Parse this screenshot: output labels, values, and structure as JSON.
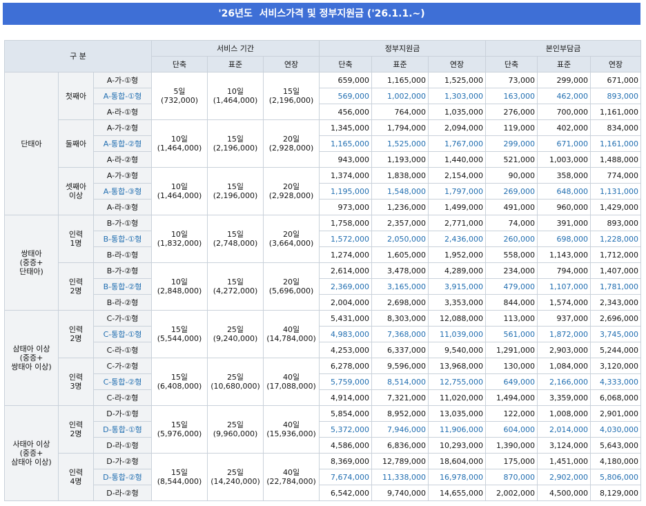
{
  "title": "'26년도  서비스가격 및 정부지원금 ('26.1.1.~)",
  "header": {
    "group_label": "구 분",
    "columns": [
      {
        "label": "서비스 기간",
        "sub": [
          "단축",
          "표준",
          "연장"
        ]
      },
      {
        "label": "정부지원금",
        "sub": [
          "단축",
          "표준",
          "연장"
        ]
      },
      {
        "label": "본인부담금",
        "sub": [
          "단축",
          "표준",
          "연장"
        ]
      }
    ]
  },
  "groups": [
    {
      "label": "단태아",
      "subgroups": [
        {
          "label": "첫째아",
          "service": [
            "5일\n(732,000)",
            "10일\n(1,464,000)",
            "15일\n(2,196,000)"
          ],
          "rows": [
            {
              "type": "A-가-①형",
              "support": [
                "659,000",
                "1,165,000",
                "1,525,000"
              ],
              "copay": [
                "73,000",
                "299,000",
                "671,000"
              ]
            },
            {
              "type": "A-통합-①형",
              "support": [
                "569,000",
                "1,002,000",
                "1,303,000"
              ],
              "copay": [
                "163,000",
                "462,000",
                "893,000"
              ]
            },
            {
              "type": "A-라-①형",
              "support": [
                "456,000",
                "764,000",
                "1,035,000"
              ],
              "copay": [
                "276,000",
                "700,000",
                "1,161,000"
              ]
            }
          ]
        },
        {
          "label": "둘째아",
          "service": [
            "10일\n(1,464,000)",
            "15일\n(2,196,000)",
            "20일\n(2,928,000)"
          ],
          "rows": [
            {
              "type": "A-가-②형",
              "support": [
                "1,345,000",
                "1,794,000",
                "2,094,000"
              ],
              "copay": [
                "119,000",
                "402,000",
                "834,000"
              ]
            },
            {
              "type": "A-통합-②형",
              "support": [
                "1,165,000",
                "1,525,000",
                "1,767,000"
              ],
              "copay": [
                "299,000",
                "671,000",
                "1,161,000"
              ]
            },
            {
              "type": "A-라-②형",
              "support": [
                "943,000",
                "1,193,000",
                "1,440,000"
              ],
              "copay": [
                "521,000",
                "1,003,000",
                "1,488,000"
              ]
            }
          ]
        },
        {
          "label": "셋째아\n이상",
          "service": [
            "10일\n(1,464,000)",
            "15일\n(2,196,000)",
            "20일\n(2,928,000)"
          ],
          "rows": [
            {
              "type": "A-가-③형",
              "support": [
                "1,374,000",
                "1,838,000",
                "2,154,000"
              ],
              "copay": [
                "90,000",
                "358,000",
                "774,000"
              ]
            },
            {
              "type": "A-통합-③형",
              "support": [
                "1,195,000",
                "1,548,000",
                "1,797,000"
              ],
              "copay": [
                "269,000",
                "648,000",
                "1,131,000"
              ]
            },
            {
              "type": "A-라-③형",
              "support": [
                "973,000",
                "1,236,000",
                "1,499,000"
              ],
              "copay": [
                "491,000",
                "960,000",
                "1,429,000"
              ]
            }
          ]
        }
      ]
    },
    {
      "label": "쌍태아\n(중증+\n단태아)",
      "subgroups": [
        {
          "label": "인력\n1명",
          "service": [
            "10일\n(1,832,000)",
            "15일\n(2,748,000)",
            "20일\n(3,664,000)"
          ],
          "rows": [
            {
              "type": "B-가-①형",
              "support": [
                "1,758,000",
                "2,357,000",
                "2,771,000"
              ],
              "copay": [
                "74,000",
                "391,000",
                "893,000"
              ]
            },
            {
              "type": "B-통합-①형",
              "support": [
                "1,572,000",
                "2,050,000",
                "2,436,000"
              ],
              "copay": [
                "260,000",
                "698,000",
                "1,228,000"
              ]
            },
            {
              "type": "B-라-①형",
              "support": [
                "1,274,000",
                "1,605,000",
                "1,952,000"
              ],
              "copay": [
                "558,000",
                "1,143,000",
                "1,712,000"
              ]
            }
          ]
        },
        {
          "label": "인력\n2명",
          "service": [
            "10일\n(2,848,000)",
            "15일\n(4,272,000)",
            "20일\n(5,696,000)"
          ],
          "rows": [
            {
              "type": "B-가-②형",
              "support": [
                "2,614,000",
                "3,478,000",
                "4,289,000"
              ],
              "copay": [
                "234,000",
                "794,000",
                "1,407,000"
              ]
            },
            {
              "type": "B-통합-②형",
              "support": [
                "2,369,000",
                "3,165,000",
                "3,915,000"
              ],
              "copay": [
                "479,000",
                "1,107,000",
                "1,781,000"
              ]
            },
            {
              "type": "B-라-②형",
              "support": [
                "2,004,000",
                "2,698,000",
                "3,353,000"
              ],
              "copay": [
                "844,000",
                "1,574,000",
                "2,343,000"
              ]
            }
          ]
        }
      ]
    },
    {
      "label": "삼태아 이상\n(중증+\n쌍태아 이상)",
      "subgroups": [
        {
          "label": "인력\n2명",
          "service": [
            "15일\n(5,544,000)",
            "25일\n(9,240,000)",
            "40일\n(14,784,000)"
          ],
          "rows": [
            {
              "type": "C-가-①형",
              "support": [
                "5,431,000",
                "8,303,000",
                "12,088,000"
              ],
              "copay": [
                "113,000",
                "937,000",
                "2,696,000"
              ]
            },
            {
              "type": "C-통합-①형",
              "support": [
                "4,983,000",
                "7,368,000",
                "11,039,000"
              ],
              "copay": [
                "561,000",
                "1,872,000",
                "3,745,000"
              ]
            },
            {
              "type": "C-라-①형",
              "support": [
                "4,253,000",
                "6,337,000",
                "9,540,000"
              ],
              "copay": [
                "1,291,000",
                "2,903,000",
                "5,244,000"
              ]
            }
          ]
        },
        {
          "label": "인력\n3명",
          "service": [
            "15일\n(6,408,000)",
            "25일\n(10,680,000)",
            "40일\n(17,088,000)"
          ],
          "rows": [
            {
              "type": "C-가-②형",
              "support": [
                "6,278,000",
                "9,596,000",
                "13,968,000"
              ],
              "copay": [
                "130,000",
                "1,084,000",
                "3,120,000"
              ]
            },
            {
              "type": "C-통합-②형",
              "support": [
                "5,759,000",
                "8,514,000",
                "12,755,000"
              ],
              "copay": [
                "649,000",
                "2,166,000",
                "4,333,000"
              ]
            },
            {
              "type": "C-라-②형",
              "support": [
                "4,914,000",
                "7,321,000",
                "11,020,000"
              ],
              "copay": [
                "1,494,000",
                "3,359,000",
                "6,068,000"
              ]
            }
          ]
        }
      ]
    },
    {
      "label": "사태아 이상\n(중증+\n삼태아 이상)",
      "subgroups": [
        {
          "label": "인력\n2명",
          "service": [
            "15일\n(5,976,000)",
            "25일\n(9,960,000)",
            "40일\n(15,936,000)"
          ],
          "rows": [
            {
              "type": "D-가-①형",
              "support": [
                "5,854,000",
                "8,952,000",
                "13,035,000"
              ],
              "copay": [
                "122,000",
                "1,008,000",
                "2,901,000"
              ]
            },
            {
              "type": "D-통합-①형",
              "support": [
                "5,372,000",
                "7,946,000",
                "11,906,000"
              ],
              "copay": [
                "604,000",
                "2,014,000",
                "4,030,000"
              ]
            },
            {
              "type": "D-라-①형",
              "support": [
                "4,586,000",
                "6,836,000",
                "10,293,000"
              ],
              "copay": [
                "1,390,000",
                "3,124,000",
                "5,643,000"
              ]
            }
          ]
        },
        {
          "label": "인력\n4명",
          "service": [
            "15일\n(8,544,000)",
            "25일\n(14,240,000)",
            "40일\n(22,784,000)"
          ],
          "rows": [
            {
              "type": "D-가-②형",
              "support": [
                "8,369,000",
                "12,789,000",
                "18,604,000"
              ],
              "copay": [
                "175,000",
                "1,451,000",
                "4,180,000"
              ]
            },
            {
              "type": "D-통합-②형",
              "support": [
                "7,674,000",
                "11,338,000",
                "16,978,000"
              ],
              "copay": [
                "870,000",
                "2,902,000",
                "5,806,000"
              ]
            },
            {
              "type": "D-라-②형",
              "support": [
                "6,542,000",
                "9,740,000",
                "14,655,000"
              ],
              "copay": [
                "2,002,000",
                "4,500,000",
                "8,129,000"
              ]
            }
          ]
        }
      ]
    }
  ]
}
